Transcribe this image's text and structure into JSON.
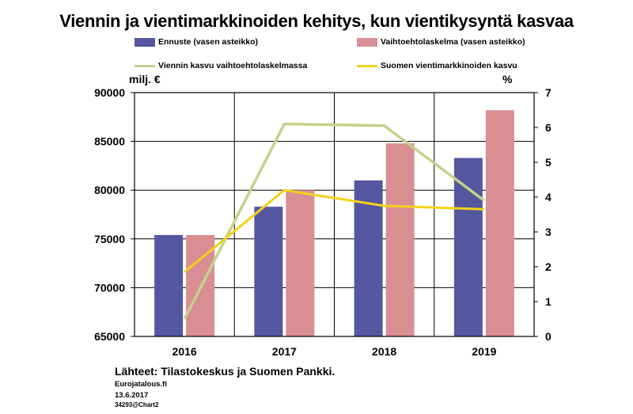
{
  "title": "Viennin ja vientimarkkinoiden kehitys, kun vientikysyntä kasvaa",
  "legend": [
    {
      "label": "Ennuste (vasen asteikko)",
      "kind": "bar",
      "color": "#5457a0"
    },
    {
      "label": "Vaihtoehtolaskelma (vasen asteikko)",
      "kind": "bar",
      "color": "#d98e94"
    },
    {
      "label": "Viennin kasvu vaihtoehtolaskelmassa",
      "kind": "line",
      "color": "#c2d28c"
    },
    {
      "label": "Suomen vientimarkkinoiden kasvu",
      "kind": "line",
      "color": "#f2d21a"
    }
  ],
  "left_unit": "milj. €",
  "right_unit": "%",
  "source": "Lähteet: Tilastokeskus ja Suomen Pankki.",
  "footer": {
    "line1": "Eurojatalous.fi",
    "line2": "13.6.2017",
    "line3": "34293@Chart2"
  },
  "chart_data": {
    "type": "bar",
    "categories": [
      "2016",
      "2017",
      "2018",
      "2019"
    ],
    "series": [
      {
        "name": "Ennuste (vasen asteikko)",
        "axis": "left",
        "kind": "bar",
        "color": "#5457a0",
        "values": [
          75400,
          78300,
          81000,
          83300
        ]
      },
      {
        "name": "Vaihtoehtolaskelma (vasen asteikko)",
        "axis": "left",
        "kind": "bar",
        "color": "#d98e94",
        "values": [
          75400,
          80000,
          84800,
          88200
        ]
      },
      {
        "name": "Viennin kasvu vaihtoehtolaskelmassa",
        "axis": "right",
        "kind": "line",
        "color": "#c2d28c",
        "values": [
          0.5,
          6.1,
          6.05,
          3.9
        ]
      },
      {
        "name": "Suomen vientimarkkinoiden kasvu",
        "axis": "right",
        "kind": "line",
        "color": "#f2d21a",
        "values": [
          1.85,
          4.2,
          3.75,
          3.65
        ]
      }
    ],
    "left_axis": {
      "min": 65000,
      "max": 90000,
      "ticks": [
        "90000",
        "85000",
        "80000",
        "75000",
        "70000",
        "65000"
      ]
    },
    "right_axis": {
      "min": 0,
      "max": 7,
      "ticks": [
        "7",
        "6",
        "5",
        "4",
        "3",
        "2",
        "1",
        "0"
      ]
    },
    "grid": true,
    "legend_position": "top"
  }
}
